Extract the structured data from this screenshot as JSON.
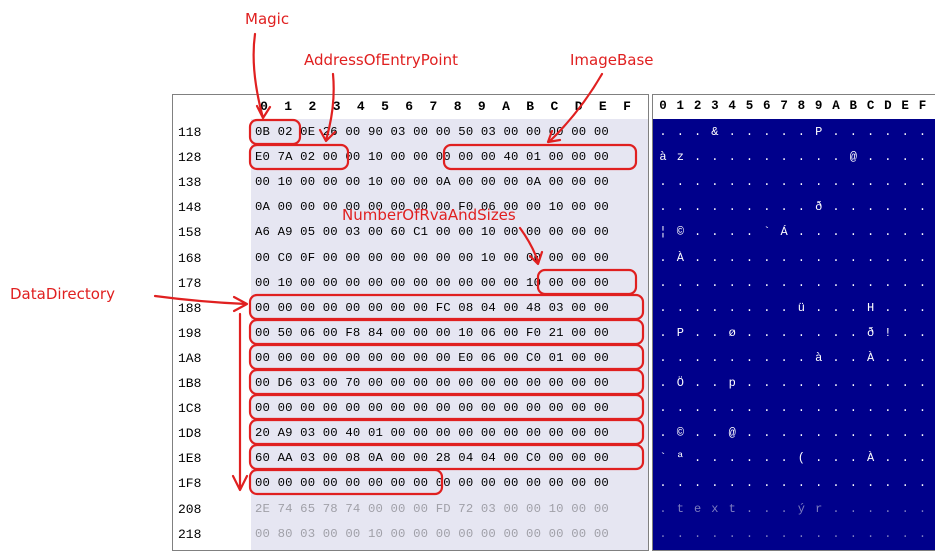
{
  "hex_header": [
    "0",
    "1",
    "2",
    "3",
    "4",
    "5",
    "6",
    "7",
    "8",
    "9",
    "A",
    "B",
    "C",
    "D",
    "E",
    "F"
  ],
  "ascii_header": [
    "0",
    "1",
    "2",
    "3",
    "4",
    "5",
    "6",
    "7",
    "8",
    "9",
    "A",
    "B",
    "C",
    "D",
    "E",
    "F"
  ],
  "rows": [
    {
      "offset": "118",
      "hex": "0B 02 0E 26 00 90 03 00 00 50 03 00 00 00 00 00",
      "ascii": [
        ".",
        ".",
        ".",
        "&",
        ".",
        ".",
        ".",
        ".",
        ".",
        "P",
        ".",
        ".",
        ".",
        ".",
        ".",
        "."
      ]
    },
    {
      "offset": "128",
      "hex": "E0 7A 02 00 00 10 00 00 00 00 00 40 01 00 00 00",
      "ascii": [
        "à",
        "z",
        ".",
        ".",
        ".",
        ".",
        ".",
        ".",
        ".",
        ".",
        ".",
        "@",
        ".",
        ".",
        ".",
        "."
      ]
    },
    {
      "offset": "138",
      "hex": "00 10 00 00 00 10 00 00 0A 00 00 00 0A 00 00 00",
      "ascii": [
        ".",
        ".",
        ".",
        ".",
        ".",
        ".",
        ".",
        ".",
        ".",
        ".",
        ".",
        ".",
        ".",
        ".",
        ".",
        "."
      ]
    },
    {
      "offset": "148",
      "hex": "0A 00 00 00 00 00 00 00 00 F0 06 00 00 10 00 00",
      "ascii": [
        ".",
        ".",
        ".",
        ".",
        ".",
        ".",
        ".",
        ".",
        ".",
        "ð",
        ".",
        ".",
        ".",
        ".",
        ".",
        "."
      ]
    },
    {
      "offset": "158",
      "hex": "A6 A9 05 00 03 00 60 C1 00 00 10 00 00 00 00 00",
      "ascii": [
        "¦",
        "©",
        ".",
        ".",
        ".",
        ".",
        "`",
        "Á",
        ".",
        ".",
        ".",
        ".",
        ".",
        ".",
        ".",
        "."
      ]
    },
    {
      "offset": "168",
      "hex": "00 C0 0F 00 00 00 00 00 00 00 10 00 00 00 00 00",
      "ascii": [
        ".",
        "À",
        ".",
        ".",
        ".",
        ".",
        ".",
        ".",
        ".",
        ".",
        ".",
        ".",
        ".",
        ".",
        ".",
        "."
      ]
    },
    {
      "offset": "178",
      "hex": "00 10 00 00 00 00 00 00 00 00 00 00 10 00 00 00",
      "ascii": [
        ".",
        ".",
        ".",
        ".",
        ".",
        ".",
        ".",
        ".",
        ".",
        ".",
        ".",
        ".",
        ".",
        ".",
        ".",
        "."
      ]
    },
    {
      "offset": "188",
      "hex": "00 00 00 00 00 00 00 00 FC 08 04 00 48 03 00 00",
      "ascii": [
        ".",
        ".",
        ".",
        ".",
        ".",
        ".",
        ".",
        ".",
        "ü",
        ".",
        ".",
        ".",
        "H",
        ".",
        ".",
        "."
      ]
    },
    {
      "offset": "198",
      "hex": "00 50 06 00 F8 84 00 00 00 10 06 00 F0 21 00 00",
      "ascii": [
        ".",
        "P",
        ".",
        ".",
        "ø",
        ".",
        ".",
        ".",
        ".",
        ".",
        ".",
        ".",
        "ð",
        "!",
        ".",
        "."
      ]
    },
    {
      "offset": "1A8",
      "hex": "00 00 00 00 00 00 00 00 00 E0 06 00 C0 01 00 00",
      "ascii": [
        ".",
        ".",
        ".",
        ".",
        ".",
        ".",
        ".",
        ".",
        ".",
        "à",
        ".",
        ".",
        "À",
        ".",
        ".",
        "."
      ]
    },
    {
      "offset": "1B8",
      "hex": "00 D6 03 00 70 00 00 00 00 00 00 00 00 00 00 00",
      "ascii": [
        ".",
        "Ö",
        ".",
        ".",
        "p",
        ".",
        ".",
        ".",
        ".",
        ".",
        ".",
        ".",
        ".",
        ".",
        ".",
        "."
      ]
    },
    {
      "offset": "1C8",
      "hex": "00 00 00 00 00 00 00 00 00 00 00 00 00 00 00 00",
      "ascii": [
        ".",
        ".",
        ".",
        ".",
        ".",
        ".",
        ".",
        ".",
        ".",
        ".",
        ".",
        ".",
        ".",
        ".",
        ".",
        "."
      ]
    },
    {
      "offset": "1D8",
      "hex": "20 A9 03 00 40 01 00 00 00 00 00 00 00 00 00 00",
      "ascii": [
        ".",
        "©",
        ".",
        ".",
        "@",
        ".",
        ".",
        ".",
        ".",
        ".",
        ".",
        ".",
        ".",
        ".",
        ".",
        "."
      ]
    },
    {
      "offset": "1E8",
      "hex": "60 AA 03 00 08 0A 00 00 28 04 04 00 C0 00 00 00",
      "ascii": [
        "`",
        "ª",
        ".",
        ".",
        ".",
        ".",
        ".",
        ".",
        "(",
        ".",
        ".",
        ".",
        "À",
        ".",
        ".",
        "."
      ]
    },
    {
      "offset": "1F8",
      "hex": "00 00 00 00 00 00 00 00 00 00 00 00 00 00 00 00",
      "ascii": [
        ".",
        ".",
        ".",
        ".",
        ".",
        ".",
        ".",
        ".",
        ".",
        ".",
        ".",
        ".",
        ".",
        ".",
        ".",
        "."
      ]
    },
    {
      "offset": "208",
      "hex": "2E 74 65 78 74 00 00 00 FD 72 03 00 00 10 00 00",
      "ascii": [
        ".",
        "t",
        "e",
        "x",
        "t",
        ".",
        ".",
        ".",
        "ý",
        "r",
        ".",
        ".",
        ".",
        ".",
        ".",
        "."
      ],
      "dim": true
    },
    {
      "offset": "218",
      "hex": "00 80 03 00 00 10 00 00 00 00 00 00 00 00 00 00",
      "ascii": [
        ".",
        ".",
        ".",
        ".",
        ".",
        ".",
        ".",
        ".",
        ".",
        ".",
        ".",
        ".",
        ".",
        ".",
        ".",
        "."
      ],
      "dim": true
    }
  ],
  "annotations": {
    "magic": "Magic",
    "address_of_entry_point": "AddressOfEntryPoint",
    "image_base": "ImageBase",
    "number_of_rva_and_sizes": "NumberOfRvaAndSizes",
    "data_directory": "DataDirectory"
  },
  "colors": {
    "annotation_red": "#e02020",
    "hex_background": "#e6e6f2",
    "ascii_background": "#00008b",
    "ascii_text": "#ffffff"
  }
}
